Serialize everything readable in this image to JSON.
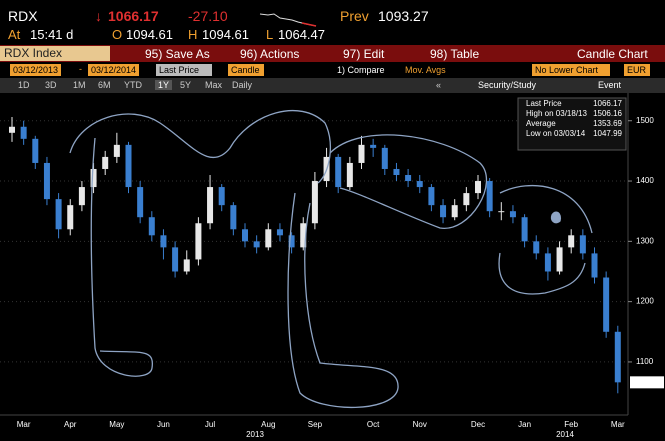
{
  "header": {
    "ticker": "RDX",
    "arrow": "↓",
    "change": "-27.10",
    "fields": [
      {
        "label": "At",
        "value": "15:41 d"
      },
      {
        "label": "O",
        "value": "1094.61"
      },
      {
        "label": "H",
        "value": "1094.61"
      },
      {
        "label": "L",
        "value": "1064.47"
      },
      {
        "label": "Prev",
        "value": "1093.27"
      }
    ]
  },
  "toolbar": {
    "security": "RDX Index",
    "buttons": [
      "95) Save As",
      "96) Actions",
      "97) Edit",
      "98) Table"
    ],
    "chart_name": "Candle Chart"
  },
  "settings": {
    "start_date": "03/12/2013",
    "separator": "-",
    "end_date": "03/12/2014",
    "field": "Last Price",
    "style": "Candle",
    "compare": "1) Compare",
    "mov_avgs": "Mov. Avgs",
    "lower": "No Lower Chart",
    "currency": "EUR"
  },
  "periods": {
    "items": [
      "1D",
      "3D",
      "1M",
      "6M",
      "YTD",
      "1Y",
      "5Y",
      "Max"
    ],
    "selected": "1Y",
    "frequency": "Daily",
    "collapse": "«",
    "study": "Security/Study",
    "event": "Event"
  },
  "chart_data": {
    "type": "candlestick",
    "categories": [
      null,
      "Mar",
      null,
      null,
      null,
      "Apr",
      null,
      null,
      null,
      "May",
      null,
      null,
      null,
      "Jun",
      null,
      null,
      null,
      "Jul",
      null,
      null,
      null,
      null,
      "Aug",
      null,
      null,
      null,
      "Sep",
      null,
      null,
      null,
      null,
      "Oct",
      null,
      null,
      null,
      "Nov",
      null,
      null,
      null,
      null,
      "Dec",
      null,
      null,
      null,
      "Jan",
      null,
      null,
      null,
      "Feb",
      null,
      null,
      null,
      "Mar"
    ],
    "year_labels": [
      "2013",
      "2014"
    ],
    "open": [
      1480,
      1490,
      1470,
      1430,
      1370,
      1320,
      1360,
      1390,
      1420,
      1440,
      1460,
      1390,
      1340,
      1310,
      1290,
      1250,
      1270,
      1330,
      1390,
      1360,
      1320,
      1300,
      1290,
      1320,
      1310,
      1290,
      1330,
      1400,
      1440,
      1390,
      1430,
      1460,
      1455,
      1420,
      1410,
      1400,
      1390,
      1360,
      1340,
      1360,
      1380,
      1400,
      1350,
      1350,
      1340,
      1300,
      1280,
      1250,
      1290,
      1310,
      1280,
      1240,
      1150
    ],
    "high": [
      1506.16,
      1500,
      1475,
      1440,
      1380,
      1370,
      1400,
      1430,
      1450,
      1480,
      1465,
      1400,
      1350,
      1320,
      1300,
      1285,
      1340,
      1410,
      1395,
      1365,
      1330,
      1310,
      1330,
      1330,
      1315,
      1340,
      1415,
      1455,
      1445,
      1440,
      1475,
      1470,
      1460,
      1430,
      1420,
      1410,
      1395,
      1370,
      1370,
      1390,
      1410,
      1405,
      1365,
      1360,
      1345,
      1310,
      1290,
      1300,
      1320,
      1320,
      1290,
      1250,
      1160
    ],
    "low": [
      1465,
      1460,
      1420,
      1360,
      1305,
      1310,
      1350,
      1380,
      1410,
      1430,
      1380,
      1330,
      1300,
      1270,
      1240,
      1245,
      1260,
      1320,
      1350,
      1310,
      1290,
      1280,
      1285,
      1300,
      1280,
      1285,
      1320,
      1390,
      1380,
      1385,
      1420,
      1440,
      1410,
      1400,
      1390,
      1380,
      1350,
      1330,
      1335,
      1350,
      1370,
      1340,
      1335,
      1330,
      1290,
      1270,
      1235,
      1245,
      1280,
      1270,
      1230,
      1140,
      1047.99
    ],
    "close": [
      1490,
      1470,
      1430,
      1370,
      1320,
      1360,
      1390,
      1420,
      1440,
      1460,
      1390,
      1340,
      1310,
      1290,
      1250,
      1270,
      1330,
      1390,
      1360,
      1320,
      1300,
      1290,
      1320,
      1310,
      1290,
      1330,
      1400,
      1440,
      1390,
      1430,
      1460,
      1455,
      1420,
      1410,
      1400,
      1390,
      1360,
      1340,
      1360,
      1380,
      1400,
      1350,
      1350,
      1340,
      1300,
      1280,
      1250,
      1290,
      1310,
      1280,
      1240,
      1150,
      1066.17
    ],
    "up_color": "#e8e8e8",
    "down_color": "#3a7fd0",
    "ylim": [
      1012,
      1546
    ],
    "yticks": [
      1100,
      1200,
      1300,
      1400,
      1500
    ],
    "grid": true,
    "legend": {
      "last_label": "Last Price",
      "high_label": "High on 03/18/13",
      "average_label": "Average",
      "average": 1353.69,
      "low_label": "Low on 03/03/14"
    }
  }
}
